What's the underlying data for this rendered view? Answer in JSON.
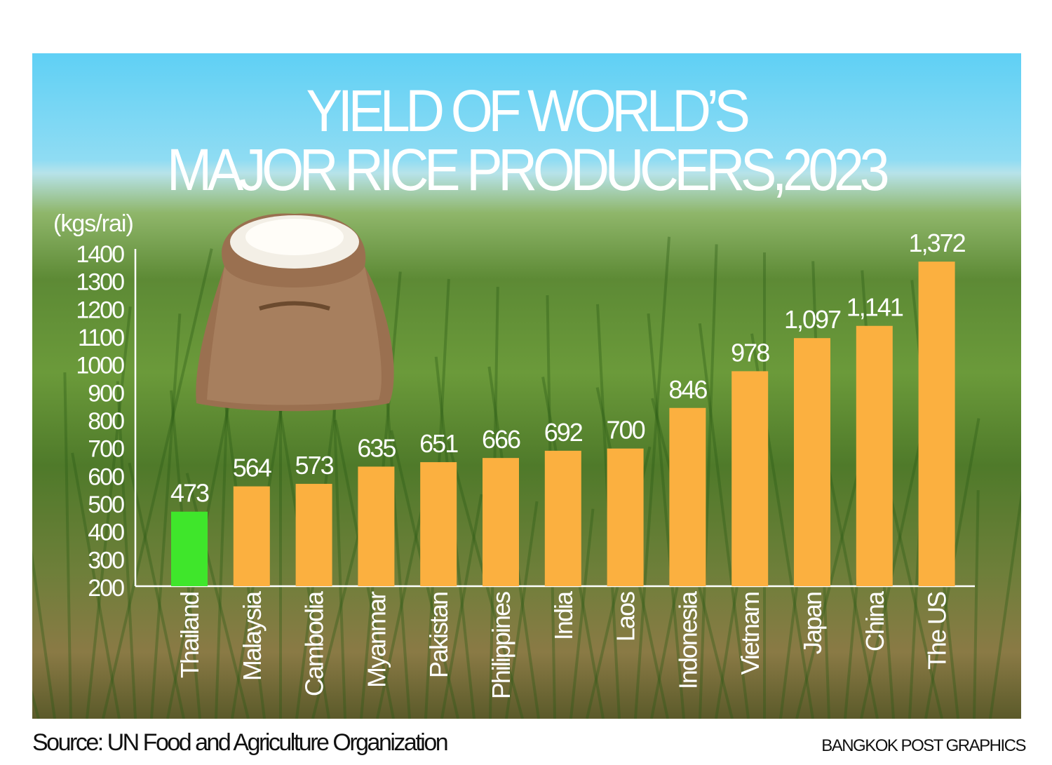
{
  "title_line1": "YIELD OF WORLD’S",
  "title_line2": "MAJOR RICE PRODUCERS,2023",
  "source": "Source: UN Food and Agriculture  Organization",
  "credit": "BANGKOK POST GRAPHICS",
  "colors": {
    "default_bar": "#FBB040",
    "highlight_bar": "#3FE62B",
    "text": "#FFFFFF"
  },
  "chart_data": {
    "type": "bar",
    "title": "YIELD OF WORLD’S MAJOR RICE PRODUCERS,2023",
    "ylabel": "(kgs/rai)",
    "xlabel": "",
    "ylim": [
      200,
      1400
    ],
    "yticks": [
      200,
      300,
      400,
      500,
      600,
      700,
      800,
      900,
      1000,
      1100,
      1200,
      1300,
      1400
    ],
    "grid": false,
    "categories": [
      "Thailand",
      "Malaysia",
      "Cambodia",
      "Myanmar",
      "Pakistan",
      "Philippines",
      "India",
      "Laos",
      "Indonesia",
      "Vietnam",
      "Japan",
      "China",
      "The US"
    ],
    "values": [
      473,
      564,
      573,
      635,
      651,
      666,
      692,
      700,
      846,
      978,
      1097,
      1141,
      1372
    ],
    "data_labels": [
      "473",
      "564",
      "573",
      "635",
      "651",
      "666",
      "692",
      "700",
      "846",
      "978",
      "1,097",
      "1,141",
      "1,372"
    ],
    "highlight": "Thailand"
  }
}
